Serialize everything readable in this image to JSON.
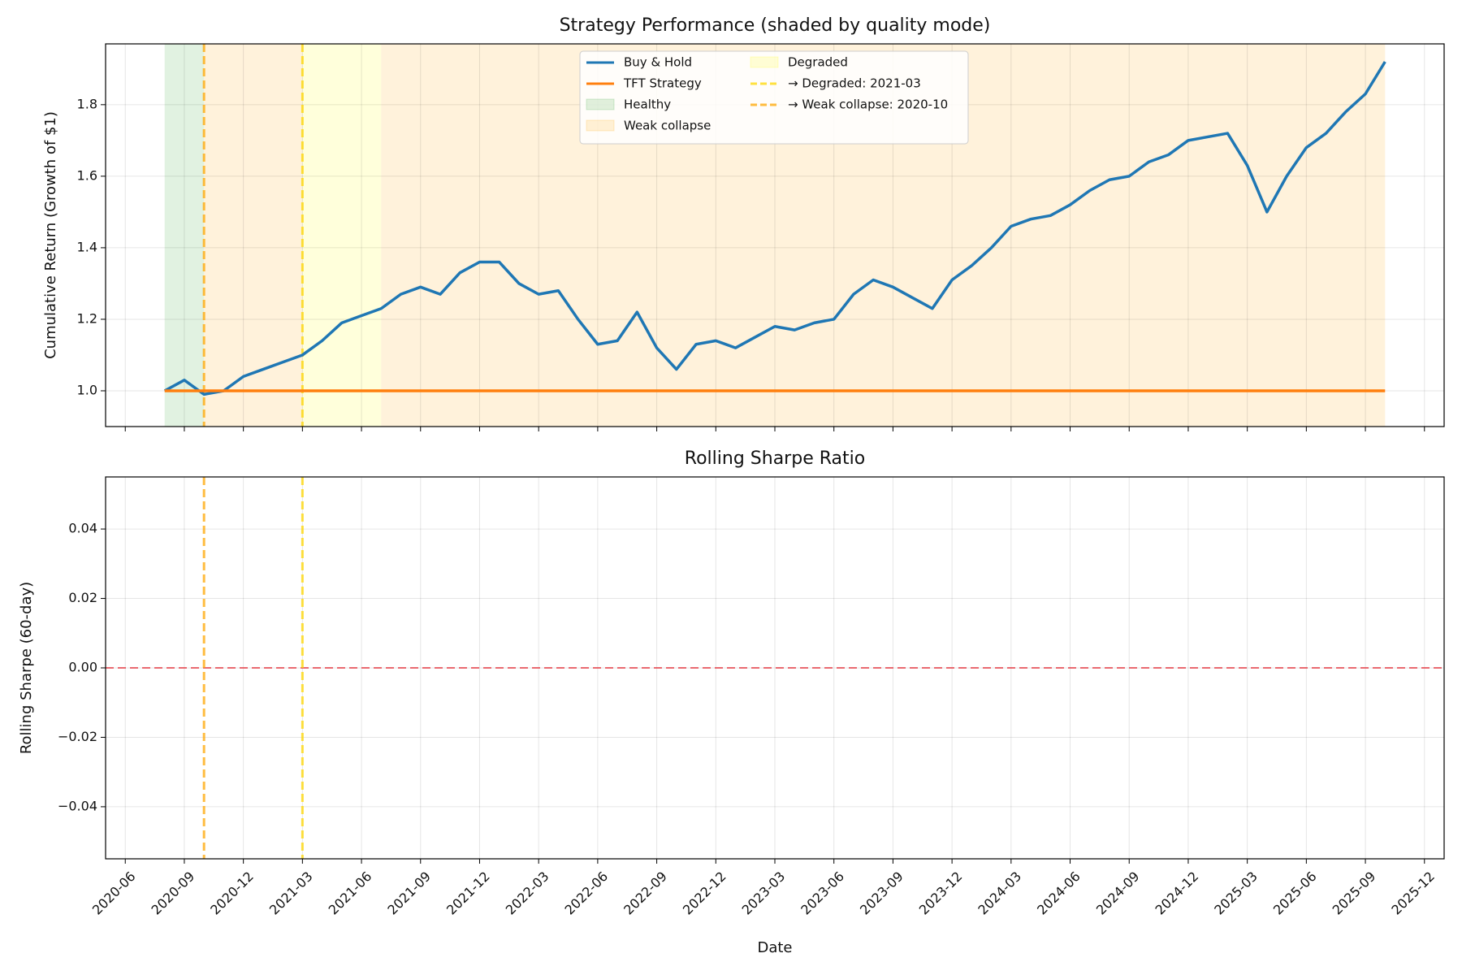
{
  "chart_data": [
    {
      "type": "line",
      "title": "Strategy Performance (shaded by quality mode)",
      "ylabel": "Cumulative Return (Growth of $1)",
      "x": [
        "2020-08",
        "2020-09",
        "2020-10",
        "2020-11",
        "2020-12",
        "2021-01",
        "2021-02",
        "2021-03",
        "2021-04",
        "2021-05",
        "2021-06",
        "2021-07",
        "2021-08",
        "2021-09",
        "2021-10",
        "2021-11",
        "2021-12",
        "2022-01",
        "2022-02",
        "2022-03",
        "2022-04",
        "2022-05",
        "2022-06",
        "2022-07",
        "2022-08",
        "2022-09",
        "2022-10",
        "2022-11",
        "2022-12",
        "2023-01",
        "2023-02",
        "2023-03",
        "2023-04",
        "2023-05",
        "2023-06",
        "2023-07",
        "2023-08",
        "2023-09",
        "2023-10",
        "2023-11",
        "2023-12",
        "2024-01",
        "2024-02",
        "2024-03",
        "2024-04",
        "2024-05",
        "2024-06",
        "2024-07",
        "2024-08",
        "2024-09",
        "2024-10",
        "2024-11",
        "2024-12",
        "2025-01",
        "2025-02",
        "2025-03",
        "2025-04",
        "2025-05",
        "2025-06",
        "2025-07",
        "2025-08",
        "2025-09",
        "2025-10"
      ],
      "series": [
        {
          "name": "Buy & Hold",
          "color": "#1f77b4",
          "values": [
            1.0,
            1.03,
            0.99,
            1.0,
            1.04,
            1.06,
            1.08,
            1.1,
            1.14,
            1.19,
            1.21,
            1.23,
            1.27,
            1.29,
            1.27,
            1.33,
            1.36,
            1.36,
            1.3,
            1.27,
            1.28,
            1.2,
            1.13,
            1.14,
            1.22,
            1.12,
            1.06,
            1.13,
            1.14,
            1.12,
            1.15,
            1.18,
            1.17,
            1.19,
            1.2,
            1.27,
            1.31,
            1.29,
            1.26,
            1.23,
            1.31,
            1.35,
            1.4,
            1.46,
            1.48,
            1.49,
            1.52,
            1.56,
            1.59,
            1.6,
            1.64,
            1.66,
            1.7,
            1.71,
            1.72,
            1.63,
            1.5,
            1.6,
            1.68,
            1.72,
            1.78,
            1.83,
            1.92
          ]
        },
        {
          "name": "TFT Strategy",
          "color": "#ff7f0e",
          "values": [
            1,
            1,
            1,
            1,
            1,
            1,
            1,
            1,
            1,
            1,
            1,
            1,
            1,
            1,
            1,
            1,
            1,
            1,
            1,
            1,
            1,
            1,
            1,
            1,
            1,
            1,
            1,
            1,
            1,
            1,
            1,
            1,
            1,
            1,
            1,
            1,
            1,
            1,
            1,
            1,
            1,
            1,
            1,
            1,
            1,
            1,
            1,
            1,
            1,
            1,
            1,
            1,
            1,
            1,
            1,
            1,
            1,
            1,
            1,
            1,
            1,
            1,
            1
          ]
        }
      ],
      "regions": [
        {
          "name": "Healthy",
          "color": "#2ca02c",
          "spans": [
            [
              "2020-08",
              "2020-10"
            ]
          ]
        },
        {
          "name": "Weak collapse",
          "color": "#ffa500",
          "spans": [
            [
              "2020-10",
              "2021-03"
            ],
            [
              "2021-07",
              "2025-10"
            ]
          ]
        },
        {
          "name": "Degraded",
          "color": "#ffff00",
          "spans": [
            [
              "2021-03",
              "2021-07"
            ]
          ]
        }
      ],
      "vlines": [
        {
          "name": "→ Degraded: 2021-03",
          "x": "2021-03",
          "color": "#ffd700"
        },
        {
          "name": "→ Weak collapse: 2020-10",
          "x": "2020-10",
          "color": "#ffa500"
        }
      ],
      "xlim": [
        "2020-05",
        "2026-01"
      ],
      "ylim": [
        0.9,
        1.97
      ],
      "yticks": [
        {
          "value": 1,
          "label": "1.0"
        },
        1.2,
        1.4,
        1.6,
        1.8
      ],
      "grid": true
    },
    {
      "type": "line",
      "title": "Rolling Sharpe Ratio",
      "ylabel": "Rolling Sharpe (60-day)",
      "xlabel": "Date",
      "series": [],
      "hline": {
        "value": 0,
        "color": "#e8474f"
      },
      "xlim": [
        "2020-05",
        "2026-01"
      ],
      "xticks": [
        "2020-06",
        "2020-09",
        "2020-12",
        "2021-03",
        "2021-06",
        "2021-09",
        "2021-12",
        "2022-03",
        "2022-06",
        "2022-09",
        "2022-12",
        "2023-03",
        "2023-06",
        "2023-09",
        "2023-12",
        "2024-03",
        "2024-06",
        "2024-09",
        "2024-12",
        "2025-03",
        "2025-06",
        "2025-09",
        "2025-12"
      ],
      "ylim": [
        -0.055,
        0.055
      ],
      "yticks": [
        {
          "value": -0.04,
          "label": "−0.04"
        },
        {
          "value": -0.02,
          "label": "−0.02"
        },
        {
          "value": 0,
          "label": "0.00"
        },
        {
          "value": 0.02,
          "label": "0.02"
        },
        {
          "value": 0.04,
          "label": "0.04"
        }
      ],
      "grid": true
    }
  ]
}
